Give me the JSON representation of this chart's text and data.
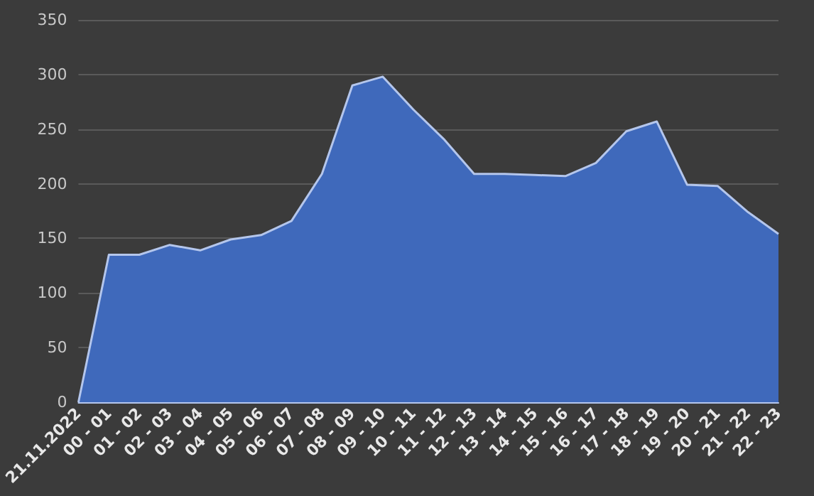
{
  "chart_data": {
    "type": "area",
    "categories": [
      "21.11.2022",
      "00 - 01",
      "01 - 02",
      "02 - 03",
      "03 - 04",
      "04 - 05",
      "05 - 06",
      "06 - 07",
      "07 - 08",
      "08 - 09",
      "09 - 10",
      "10 - 11",
      "11 - 12",
      "12 - 13",
      "13 - 14",
      "14 - 15",
      "15 - 16",
      "16 - 17",
      "17 - 18",
      "18 - 19",
      "19 - 20",
      "20 - 21",
      "21 - 22",
      "22 - 23"
    ],
    "values": [
      0,
      135,
      135,
      144,
      139,
      149,
      153,
      166,
      209,
      290,
      298,
      268,
      241,
      209,
      209,
      208,
      207,
      219,
      248,
      257,
      199,
      198,
      174,
      154
    ],
    "color": "#3f69bb",
    "ylim": [
      0,
      350
    ],
    "yticks": [
      0,
      50,
      100,
      150,
      200,
      250,
      300,
      350
    ],
    "grid": "y"
  }
}
